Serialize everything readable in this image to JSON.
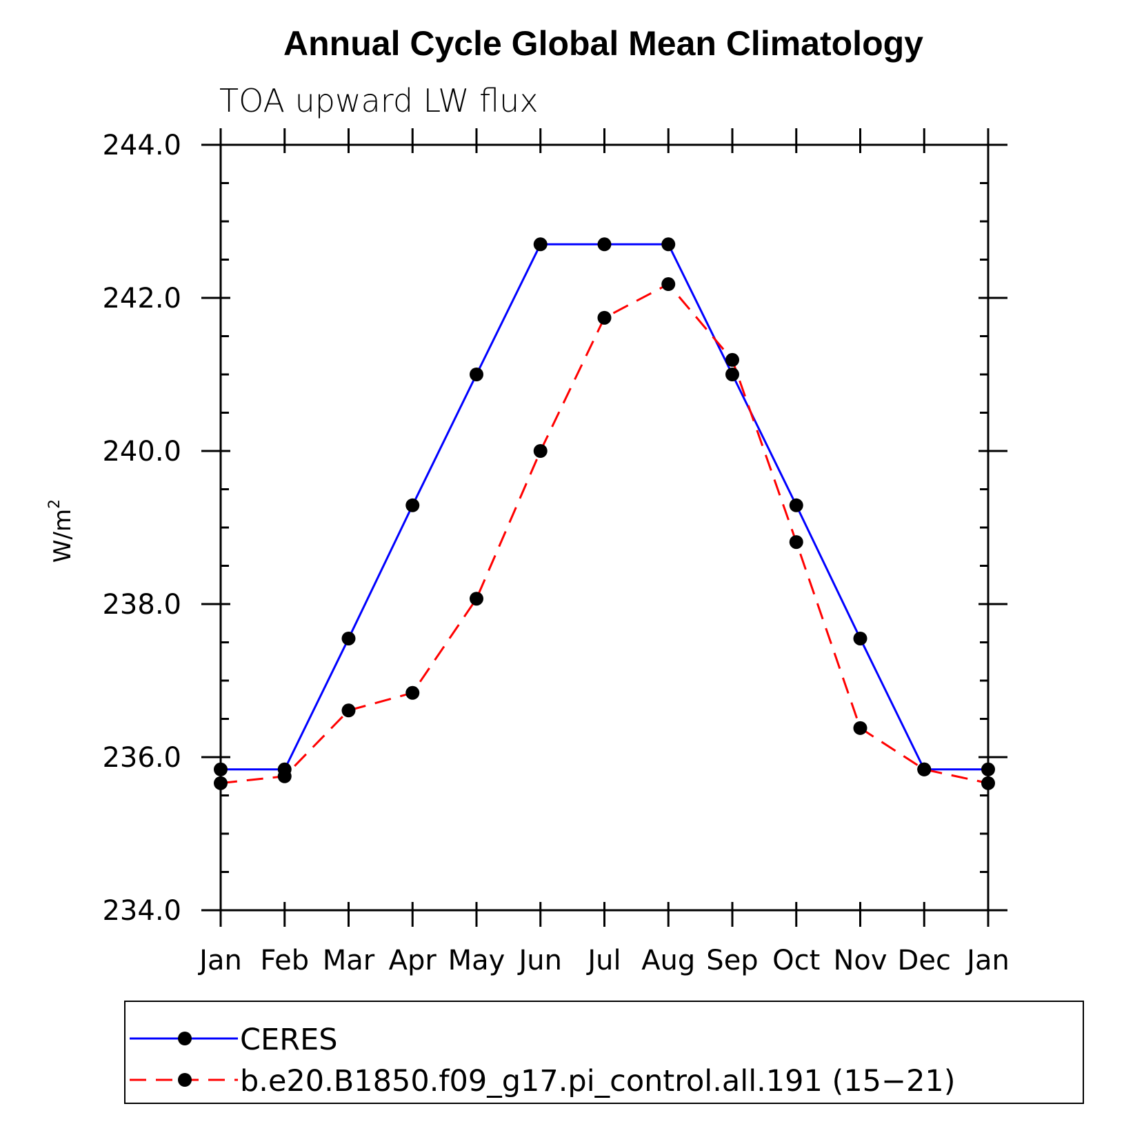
{
  "chart_data": {
    "type": "line",
    "title": "Annual Cycle Global Mean Climatology",
    "subtitle": "TOA upward LW flux",
    "ylabel_base": "W/m",
    "ylabel_sup": "2",
    "xlabel": "",
    "categories": [
      "Jan",
      "Feb",
      "Mar",
      "Apr",
      "May",
      "Jun",
      "Jul",
      "Aug",
      "Sep",
      "Oct",
      "Nov",
      "Dec",
      "Jan"
    ],
    "ylim": [
      234.0,
      244.0
    ],
    "yticks": [
      "234.0",
      "236.0",
      "238.0",
      "240.0",
      "242.0",
      "244.0"
    ],
    "ytick_values": [
      234,
      236,
      238,
      240,
      242,
      244
    ],
    "series": [
      {
        "name": "CERES",
        "color": "#0000ff",
        "dash": "solid",
        "values": [
          235.84,
          235.84,
          237.55,
          239.29,
          241.0,
          242.7,
          242.7,
          242.7,
          241.0,
          239.29,
          237.55,
          235.84,
          235.84
        ]
      },
      {
        "name": "b.e20.B1850.f09_g17.pi_control.all.191 (15−21)",
        "color": "#ff0000",
        "dash": "dashed",
        "values": [
          235.66,
          235.75,
          236.61,
          236.84,
          238.07,
          240.0,
          241.74,
          242.18,
          241.19,
          238.81,
          236.38,
          235.84,
          235.66
        ]
      }
    ],
    "marker_color": "#000000",
    "grid": false,
    "legend_position": "bottom"
  }
}
